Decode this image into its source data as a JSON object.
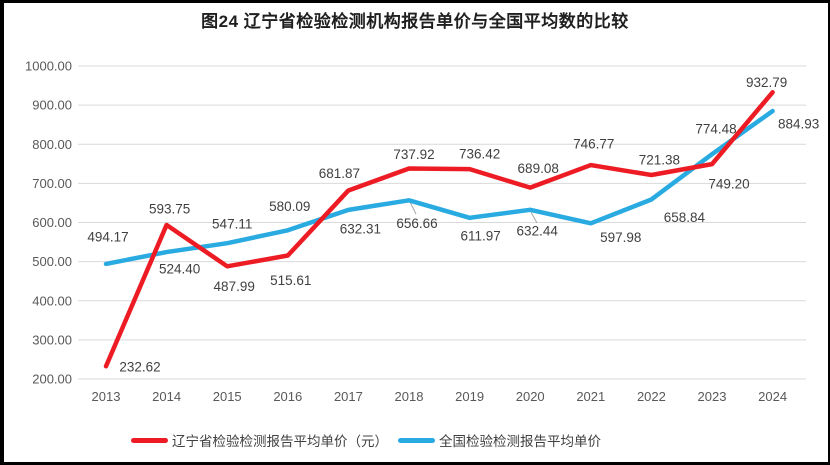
{
  "chart_data": {
    "type": "line",
    "title": "图24 辽宁省检验检测机构报告单价与全国平均数的比较",
    "categories": [
      "2013",
      "2014",
      "2015",
      "2016",
      "2017",
      "2018",
      "2019",
      "2020",
      "2021",
      "2022",
      "2023",
      "2024"
    ],
    "series": [
      {
        "name": "辽宁省检验检测报告平均单价（元）",
        "color": "#ED1C24",
        "values": [
          232.62,
          593.75,
          487.99,
          515.61,
          681.87,
          737.92,
          736.42,
          689.08,
          746.77,
          721.38,
          749.2,
          932.79
        ],
        "label_offsets": [
          [
            34,
            1
          ],
          [
            3,
            -16
          ],
          [
            7,
            20
          ],
          [
            3,
            25
          ],
          [
            -9,
            -17
          ],
          [
            5,
            -14
          ],
          [
            10,
            -15
          ],
          [
            8,
            -19
          ],
          [
            3,
            -21
          ],
          [
            8,
            -15
          ],
          [
            17,
            20
          ],
          [
            -6,
            -10
          ]
        ],
        "z_order": 2
      },
      {
        "name": "全国检验检测报告平均单价",
        "color": "#29ABE2",
        "values": [
          494.17,
          524.4,
          547.11,
          580.09,
          632.31,
          656.66,
          611.97,
          632.44,
          597.98,
          658.84,
          774.48,
          884.93
        ],
        "label_offsets": [
          [
            2,
            -27
          ],
          [
            13,
            17
          ],
          [
            5,
            -19
          ],
          [
            2,
            -24
          ],
          [
            12,
            19
          ],
          [
            8,
            23
          ],
          [
            11,
            18
          ],
          [
            7,
            21
          ],
          [
            30,
            14
          ],
          [
            33,
            18
          ],
          [
            4,
            -25
          ],
          [
            26,
            13
          ]
        ],
        "leader_lines": [
          [
            410,
            202,
            416,
            214
          ],
          [
            531,
            212,
            537,
            223
          ]
        ],
        "z_order": 1
      }
    ],
    "ylim": [
      200,
      1000
    ],
    "yticks": [
      "1000.00",
      "900.00",
      "800.00",
      "700.00",
      "600.00",
      "500.00",
      "400.00",
      "300.00",
      "200.00"
    ],
    "grid": true,
    "legend_position": "bottom",
    "colors": {
      "grid": "#D9D9D9",
      "axis_text": "#595959",
      "data_label_text": "#404040",
      "leader_line": "#A6A6A6"
    }
  }
}
